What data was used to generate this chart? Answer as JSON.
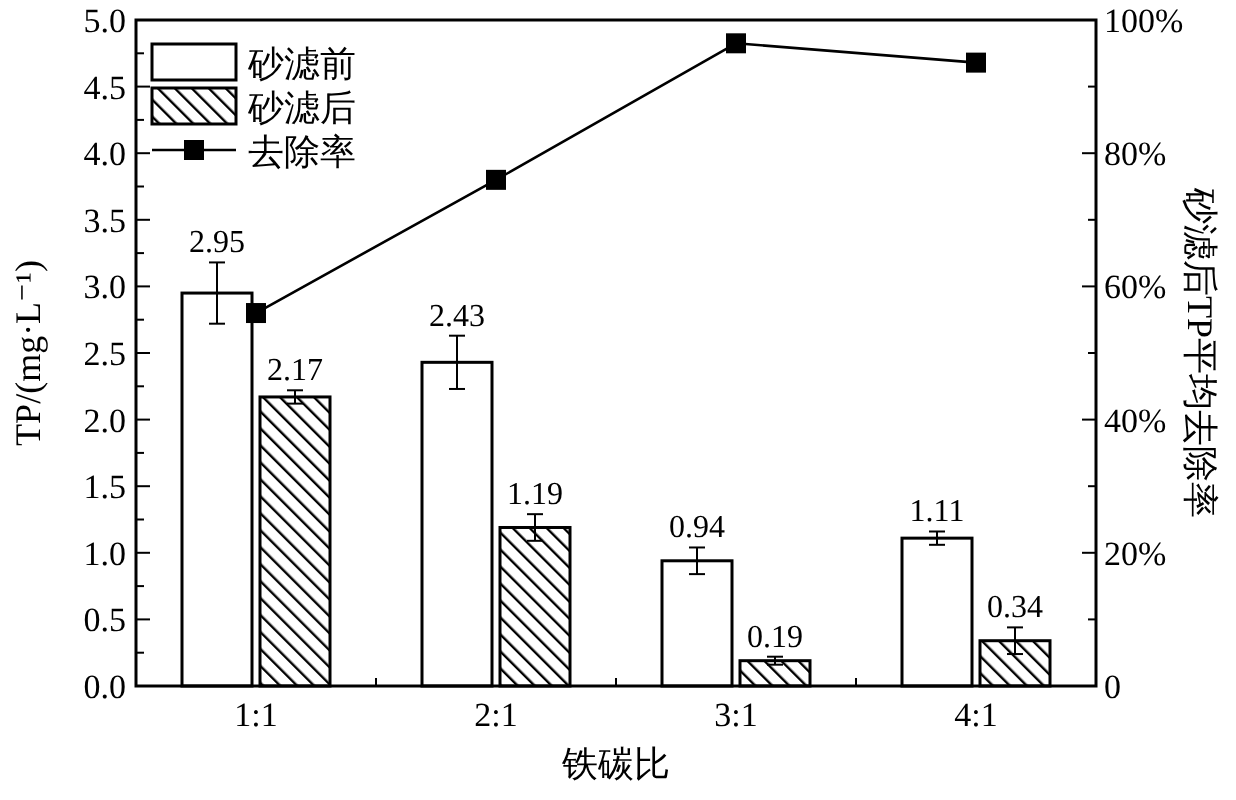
{
  "chart_data": {
    "type": "bar",
    "categories": [
      "1:1",
      "2:1",
      "3:1",
      "4:1"
    ],
    "xlabel": "铁碳比",
    "ylabel": "TP/(mg·L⁻¹)",
    "y2label": "砂滤后TP平均去除率",
    "series": [
      {
        "name": "砂滤前",
        "color": "#ffffff",
        "values": [
          2.95,
          2.43,
          0.94,
          1.11
        ],
        "errors": [
          0.23,
          0.2,
          0.1,
          0.05
        ],
        "value_labels": [
          "2.95",
          "2.43",
          "0.94",
          "1.11"
        ]
      },
      {
        "name": "砂滤后",
        "color": "#000000",
        "values": [
          2.17,
          1.19,
          0.19,
          0.34
        ],
        "errors": [
          0.05,
          0.1,
          0.03,
          0.1
        ],
        "value_labels": [
          "2.17",
          "1.19",
          "0.19",
          "0.34"
        ]
      },
      {
        "name": "去除率",
        "type": "line",
        "axis": "y2",
        "color": "#000000",
        "marker": "square",
        "values": [
          56,
          76,
          96.5,
          93.6
        ]
      }
    ],
    "legend": "top left",
    "ylim": [
      0,
      5
    ],
    "yticks": [
      {
        "value": 0,
        "label": "0.0"
      },
      {
        "value": 0.25,
        "label": null
      },
      0.5,
      {
        "value": 0.75,
        "label": null
      },
      {
        "value": 1,
        "label": "1.0"
      },
      {
        "value": 1.25,
        "label": null
      },
      1.5,
      {
        "value": 1.75,
        "label": null
      },
      {
        "value": 2,
        "label": "2.0"
      },
      {
        "value": 2.25,
        "label": null
      },
      2.5,
      {
        "value": 2.75,
        "label": null
      },
      {
        "value": 3,
        "label": "3.0"
      },
      {
        "value": 3.25,
        "label": null
      },
      3.5,
      {
        "value": 3.75,
        "label": null
      },
      {
        "value": 4,
        "label": "4.0"
      },
      {
        "value": 4.25,
        "label": null
      },
      4.5,
      {
        "value": 4.75,
        "label": null
      },
      {
        "value": 5,
        "label": "5.0"
      }
    ],
    "y2lim": [
      0,
      100
    ],
    "y2ticks": [
      {
        "value": 0,
        "label": "0"
      },
      {
        "value": 10,
        "label": null
      },
      {
        "value": 20,
        "label": "20%"
      },
      {
        "value": 30,
        "label": null
      },
      {
        "value": 40,
        "label": "40%"
      },
      {
        "value": 50,
        "label": null
      },
      {
        "value": 60,
        "label": "60%"
      },
      {
        "value": 70,
        "label": null
      },
      {
        "value": 80,
        "label": "80%"
      },
      {
        "value": 90,
        "label": null
      },
      {
        "value": 100,
        "label": "100%"
      }
    ]
  }
}
